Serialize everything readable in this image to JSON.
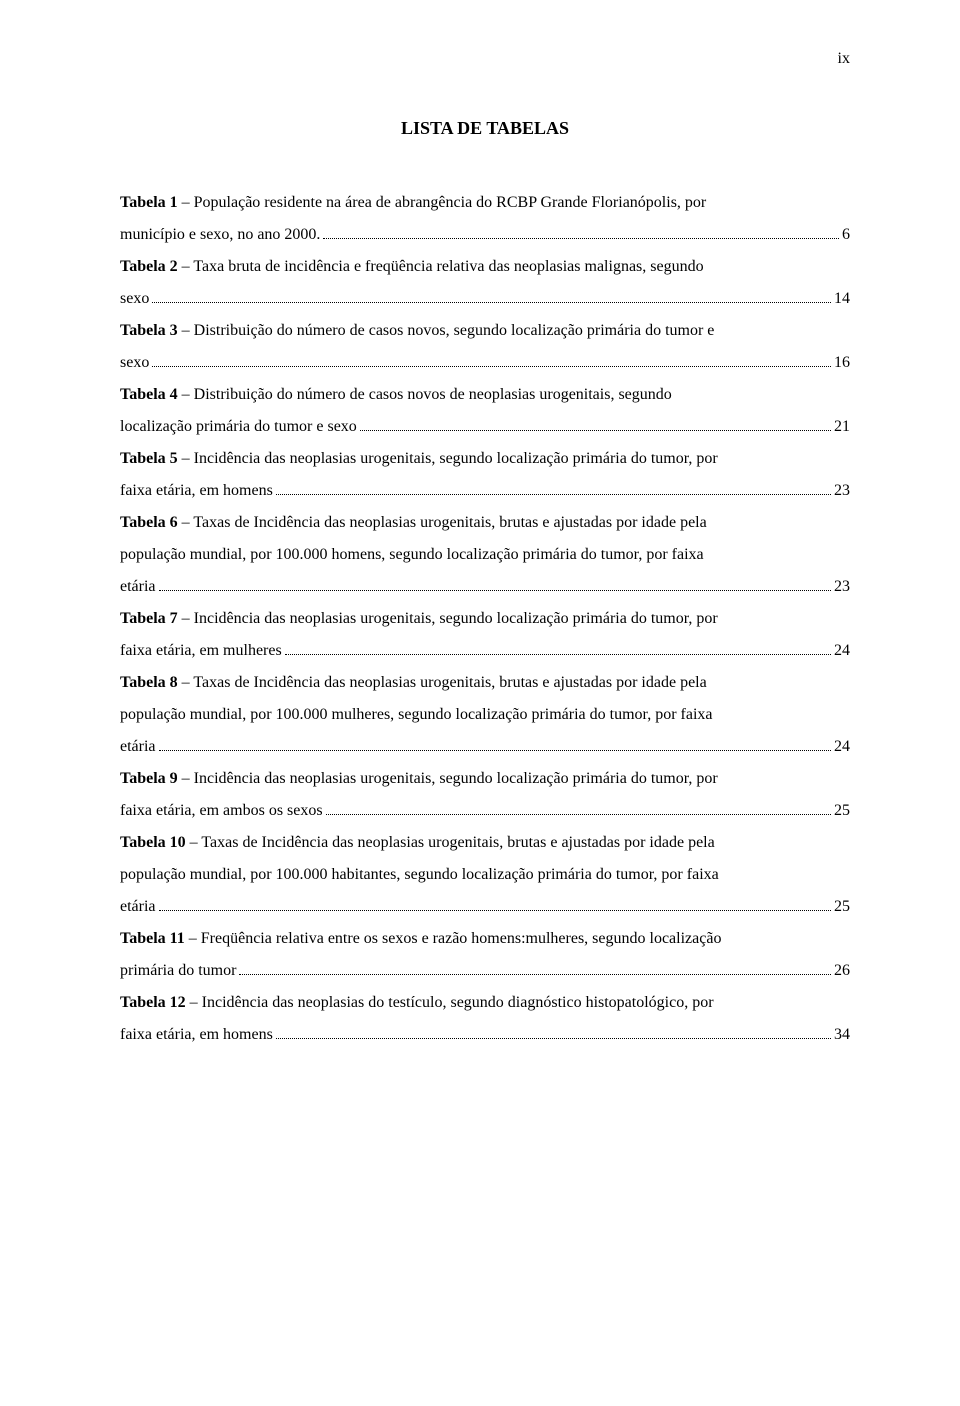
{
  "page": {
    "roman_numeral": "ix",
    "title": "LISTA DE TABELAS"
  },
  "entries": [
    {
      "label": "Tabela 1",
      "text_lines": [
        "População residente na área de abrangência do RCBP Grande Florianópolis, por"
      ],
      "last_line": "município e sexo, no ano 2000.",
      "page": "6"
    },
    {
      "label": "Tabela 2",
      "text_lines": [
        "Taxa bruta de incidência e freqüência relativa das neoplasias malignas, segundo"
      ],
      "last_line": "sexo",
      "page": "14"
    },
    {
      "label": "Tabela 3",
      "text_lines": [
        "Distribuição do número de casos novos, segundo localização primária do tumor e"
      ],
      "last_line": "sexo",
      "page": "16"
    },
    {
      "label": "Tabela 4",
      "text_lines": [
        "Distribuição do número de casos novos de neoplasias urogenitais, segundo"
      ],
      "last_line": "localização primária do tumor e sexo",
      "page": "21"
    },
    {
      "label": "Tabela 5",
      "text_lines": [
        "Incidência das neoplasias urogenitais, segundo localização primária do tumor, por"
      ],
      "last_line": "faixa etária, em homens",
      "page": "23"
    },
    {
      "label": "Tabela 6",
      "text_lines": [
        "Taxas de Incidência das neoplasias urogenitais, brutas e ajustadas por idade pela",
        "população mundial, por 100.000 homens,  segundo localização primária do tumor, por faixa"
      ],
      "last_line": "etária",
      "page": "23"
    },
    {
      "label": "Tabela 7",
      "text_lines": [
        "Incidência das neoplasias urogenitais, segundo localização primária do tumor, por"
      ],
      "last_line": "faixa etária, em mulheres",
      "page": "24"
    },
    {
      "label": "Tabela 8",
      "text_lines": [
        "Taxas de Incidência das neoplasias urogenitais, brutas e ajustadas por idade pela",
        "população mundial, por 100.000 mulheres,  segundo localização primária do tumor, por faixa"
      ],
      "last_line": "etária",
      "page": "24"
    },
    {
      "label": "Tabela 9",
      "text_lines": [
        "Incidência das neoplasias urogenitais, segundo localização primária do tumor, por"
      ],
      "last_line": "faixa etária, em ambos os sexos",
      "page": "25"
    },
    {
      "label": "Tabela 10",
      "text_lines": [
        "Taxas de Incidência das neoplasias urogenitais, brutas e ajustadas por idade pela",
        "população mundial, por 100.000 habitantes,  segundo localização primária do tumor, por faixa"
      ],
      "last_line": "etária",
      "page": "25"
    },
    {
      "label": "Tabela 11",
      "text_lines": [
        "Freqüência relativa entre os sexos e razão homens:mulheres, segundo localização"
      ],
      "last_line": "primária do tumor",
      "page": "26"
    },
    {
      "label": "Tabela 12",
      "text_lines": [
        "Incidência das neoplasias do testículo, segundo diagnóstico histopatológico, por"
      ],
      "last_line": "faixa etária, em homens",
      "page": "34"
    }
  ]
}
